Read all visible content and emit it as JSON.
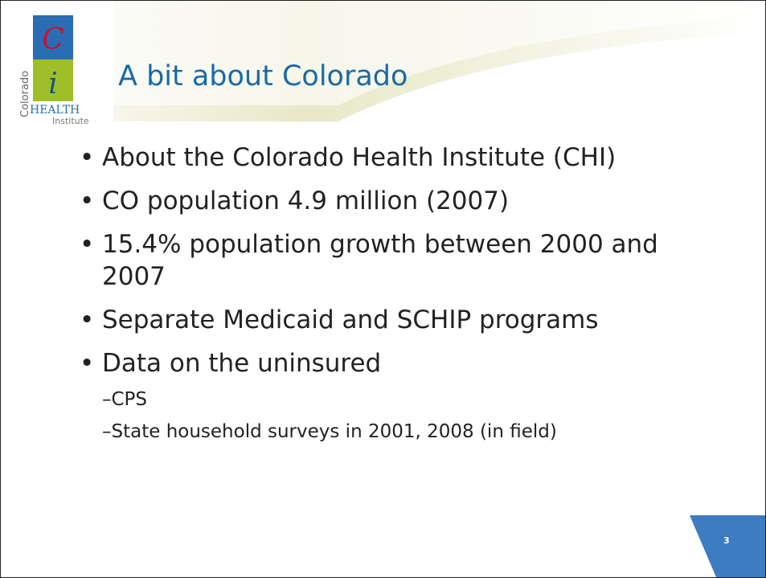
{
  "header": {
    "title": "A bit about Colorado",
    "logo": {
      "letter1": "C",
      "letter2": "i",
      "side": "Colorado",
      "word": "HEALTH",
      "sub": "Institute"
    }
  },
  "bullets": [
    {
      "text": "About the Colorado Health Institute (CHI)"
    },
    {
      "text": "CO population 4.9 million (2007)"
    },
    {
      "text": "15.4% population growth between 2000 and 2007"
    },
    {
      "text": "Separate Medicaid and SCHIP programs"
    },
    {
      "text": "Data on the uninsured",
      "sub": [
        "CPS",
        "State household surveys in 2001, 2008 (in field)"
      ]
    }
  ],
  "page_number": "3"
}
